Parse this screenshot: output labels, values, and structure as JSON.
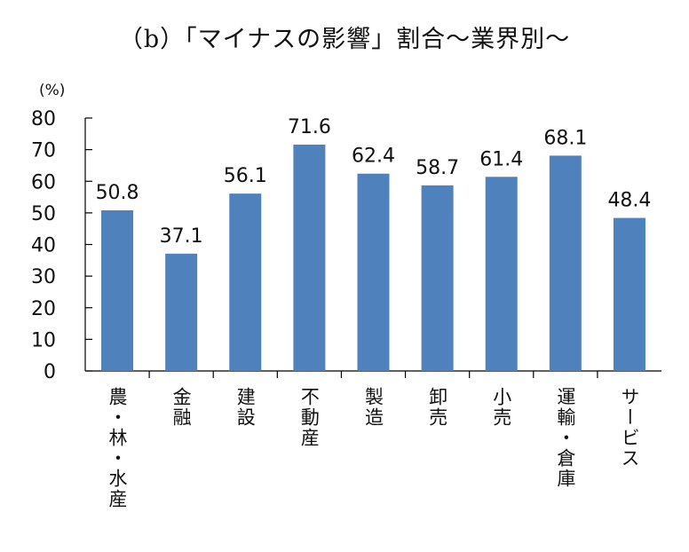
{
  "chart_data": {
    "type": "bar",
    "title": "（b）「マイナスの影響」割合～業界別～",
    "ylabel": "(%)",
    "ylim": [
      0,
      80
    ],
    "yticks": [
      0,
      10,
      20,
      30,
      40,
      50,
      60,
      70,
      80
    ],
    "categories": [
      "農・林・水産",
      "金融",
      "建設",
      "不動産",
      "製造",
      "卸売",
      "小売",
      "運輸・倉庫",
      "サービス"
    ],
    "values": [
      50.8,
      37.1,
      56.1,
      71.6,
      62.4,
      58.7,
      61.4,
      68.1,
      48.4
    ],
    "value_labels": [
      "50.8",
      "37.1",
      "56.1",
      "71.6",
      "62.4",
      "58.7",
      "61.4",
      "68.1",
      "48.4"
    ],
    "bar_color": "#4f81bd",
    "grid": false,
    "legend": "none"
  }
}
